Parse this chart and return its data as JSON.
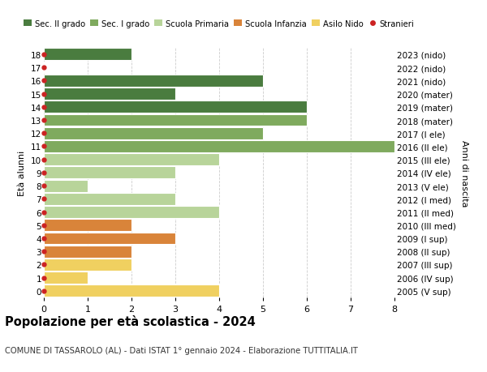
{
  "ages": [
    18,
    17,
    16,
    15,
    14,
    13,
    12,
    11,
    10,
    9,
    8,
    7,
    6,
    5,
    4,
    3,
    2,
    1,
    0
  ],
  "right_labels": [
    "2005 (V sup)",
    "2006 (IV sup)",
    "2007 (III sup)",
    "2008 (II sup)",
    "2009 (I sup)",
    "2010 (III med)",
    "2011 (II med)",
    "2012 (I med)",
    "2013 (V ele)",
    "2014 (IV ele)",
    "2015 (III ele)",
    "2016 (II ele)",
    "2017 (I ele)",
    "2018 (mater)",
    "2019 (mater)",
    "2020 (mater)",
    "2021 (nido)",
    "2022 (nido)",
    "2023 (nido)"
  ],
  "bar_values": [
    2,
    0,
    5,
    3,
    6,
    6,
    5,
    8,
    4,
    3,
    1,
    3,
    4,
    2,
    3,
    2,
    2,
    1,
    4
  ],
  "bar_colors": [
    "#4a7c3f",
    "#4a7c3f",
    "#4a7c3f",
    "#4a7c3f",
    "#4a7c3f",
    "#7faa5e",
    "#7faa5e",
    "#7faa5e",
    "#b8d49a",
    "#b8d49a",
    "#b8d49a",
    "#b8d49a",
    "#b8d49a",
    "#d9843a",
    "#d9843a",
    "#d9843a",
    "#f0d060",
    "#f0d060",
    "#f0d060"
  ],
  "legend_labels": [
    "Sec. II grado",
    "Sec. I grado",
    "Scuola Primaria",
    "Scuola Infanzia",
    "Asilo Nido",
    "Stranieri"
  ],
  "legend_colors": [
    "#4a7c3f",
    "#7faa5e",
    "#b8d49a",
    "#d9843a",
    "#f0d060",
    "#cc2222"
  ],
  "title": "Popolazione per età scolastica - 2024",
  "subtitle": "COMUNE DI TASSAROLO (AL) - Dati ISTAT 1° gennaio 2024 - Elaborazione TUTTITALIA.IT",
  "ylabel_left": "Età alunni",
  "ylabel_right": "Anni di nascita",
  "xlim": [
    0,
    8
  ],
  "xticks": [
    0,
    1,
    2,
    3,
    4,
    5,
    6,
    7,
    8
  ],
  "background_color": "#ffffff",
  "grid_color": "#cccccc"
}
